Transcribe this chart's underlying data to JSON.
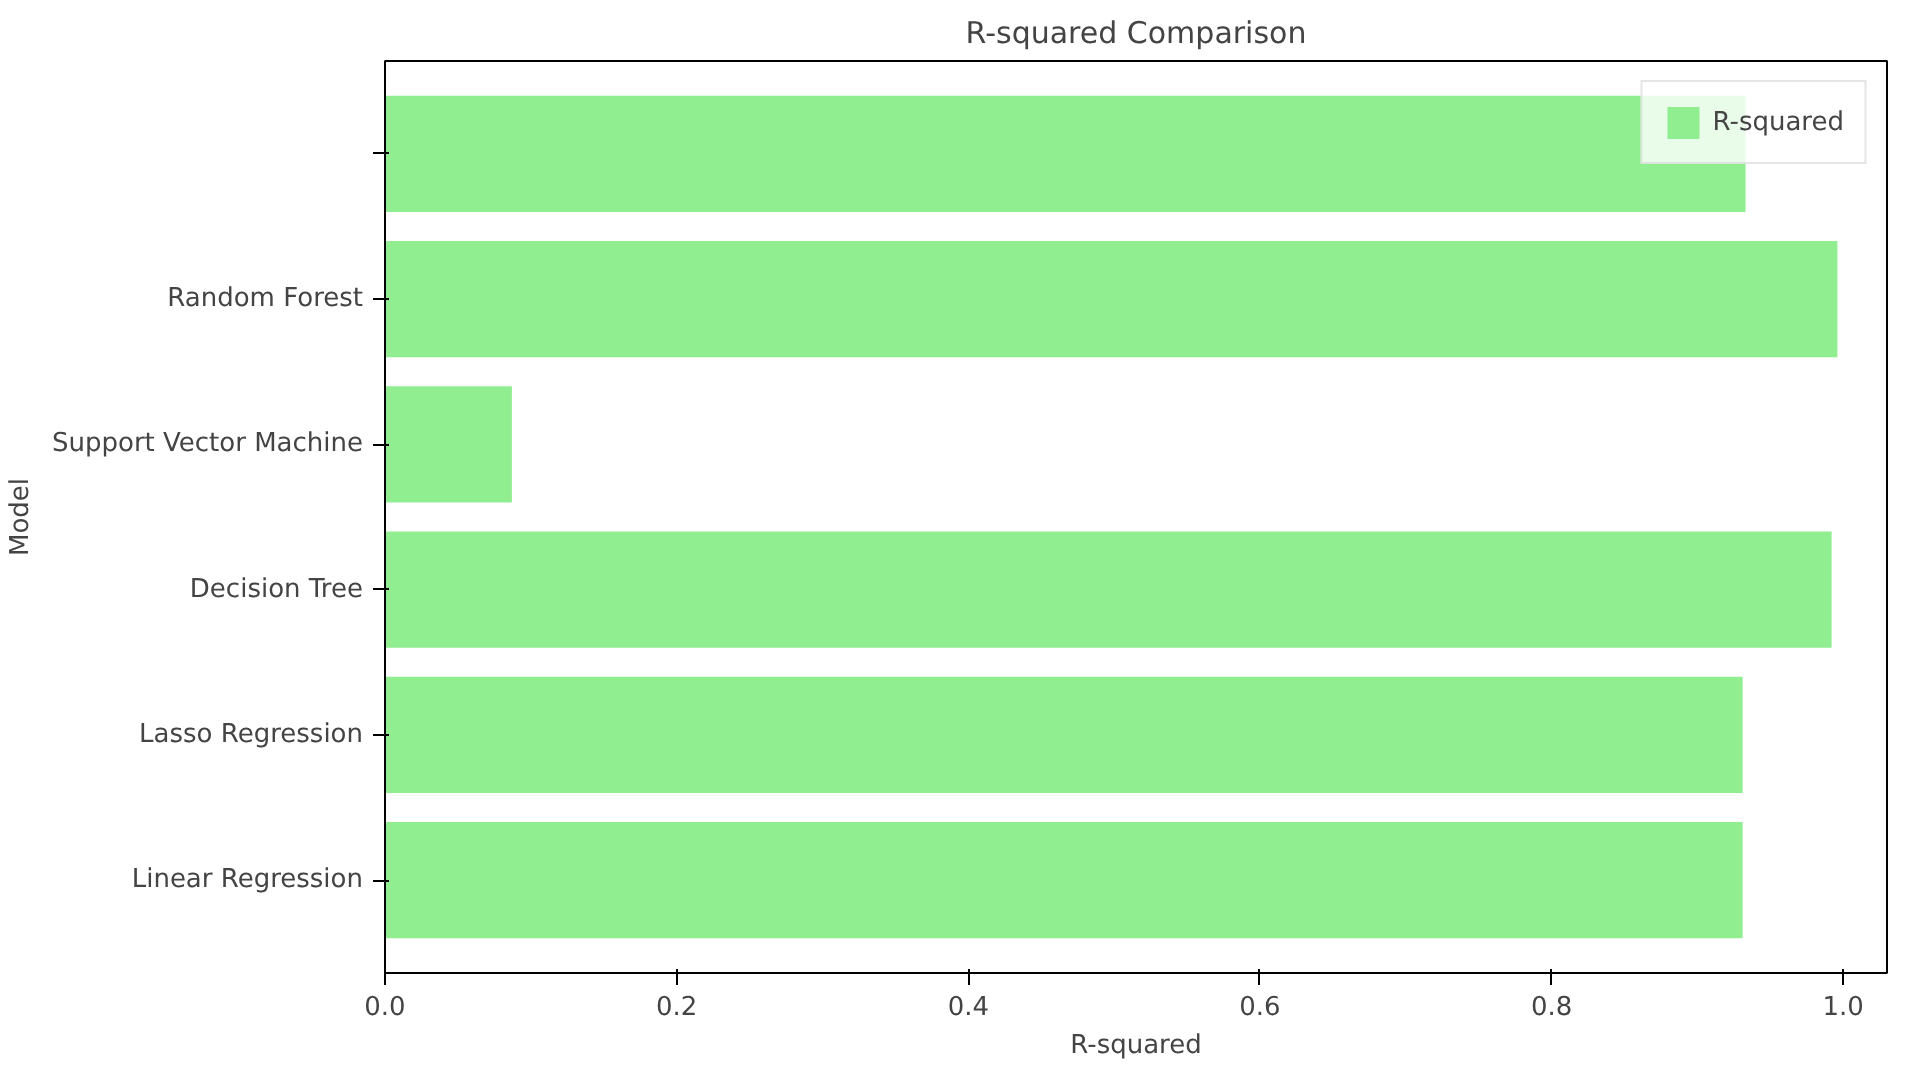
{
  "chart_data": {
    "type": "bar",
    "orientation": "horizontal",
    "title": "R-squared Comparison",
    "xlabel": "R-squared",
    "ylabel": "Model",
    "categories": [
      null,
      "Random Forest",
      "Support Vector Machine",
      "Decision Tree",
      "Lasso Regression",
      "Linear Regression"
    ],
    "series": [
      {
        "name": "R-squared",
        "color": "#90ee90",
        "values": [
          0.933,
          0.996,
          0.087,
          0.992,
          0.931,
          0.931
        ]
      }
    ],
    "xlim": [
      0,
      1.03
    ],
    "xticks": [
      {
        "value": 0,
        "label": "0.0"
      },
      {
        "value": 0.2,
        "label": "0.2"
      },
      {
        "value": 0.4,
        "label": "0.4"
      },
      {
        "value": 0.6,
        "label": "0.6"
      },
      {
        "value": 0.8,
        "label": "0.8"
      },
      {
        "value": 1.0,
        "label": "1.0"
      }
    ],
    "grid": false,
    "legend": "top right"
  }
}
